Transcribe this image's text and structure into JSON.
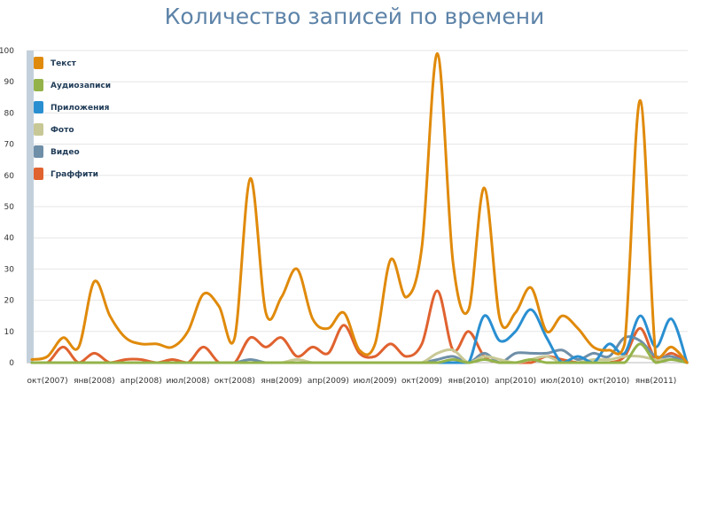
{
  "title": "Количество записей по времени",
  "chart_data": {
    "type": "line",
    "title": "Количество записей по времени",
    "xlabel": "",
    "ylabel": "",
    "ylim": [
      0,
      100
    ],
    "yticks": [
      0,
      10,
      20,
      30,
      40,
      50,
      60,
      70,
      80,
      90,
      100
    ],
    "grid": true,
    "legend_position": "top-left",
    "months": [
      "2007-09",
      "2007-10",
      "2007-11",
      "2007-12",
      "2008-01",
      "2008-02",
      "2008-03",
      "2008-04",
      "2008-05",
      "2008-06",
      "2008-07",
      "2008-08",
      "2008-09",
      "2008-10",
      "2008-11",
      "2008-12",
      "2009-01",
      "2009-02",
      "2009-03",
      "2009-04",
      "2009-05",
      "2009-06",
      "2009-07",
      "2009-08",
      "2009-09",
      "2009-10",
      "2009-11",
      "2009-12",
      "2010-01",
      "2010-02",
      "2010-03",
      "2010-04",
      "2010-05",
      "2010-06",
      "2010-07",
      "2010-08",
      "2010-09",
      "2010-10",
      "2010-11",
      "2010-12",
      "2011-01",
      "2011-02",
      "2011-03"
    ],
    "x_tick_labels": [
      {
        "label": "окт(2007)",
        "month_index": 1
      },
      {
        "label": "янв(2008)",
        "month_index": 4
      },
      {
        "label": "апр(2008)",
        "month_index": 7
      },
      {
        "label": "июл(2008)",
        "month_index": 10
      },
      {
        "label": "окт(2008)",
        "month_index": 13
      },
      {
        "label": "янв(2009)",
        "month_index": 16
      },
      {
        "label": "апр(2009)",
        "month_index": 19
      },
      {
        "label": "июл(2009)",
        "month_index": 22
      },
      {
        "label": "окт(2009)",
        "month_index": 25
      },
      {
        "label": "янв(2010)",
        "month_index": 28
      },
      {
        "label": "апр(2010)",
        "month_index": 31
      },
      {
        "label": "июл(2010)",
        "month_index": 34
      },
      {
        "label": "окт(2010)",
        "month_index": 37
      },
      {
        "label": "янв(2011)",
        "month_index": 40
      }
    ],
    "series": [
      {
        "name": "Текст",
        "color": "#e08a0b",
        "values": [
          1,
          2,
          8,
          5,
          26,
          15,
          8,
          6,
          6,
          5,
          10,
          22,
          18,
          8,
          59,
          16,
          21,
          30,
          14,
          11,
          16,
          4,
          6,
          33,
          21,
          37,
          99,
          32,
          17,
          56,
          14,
          16,
          24,
          10,
          15,
          11,
          5,
          4,
          6,
          84,
          2,
          5,
          0
        ]
      },
      {
        "name": "Аудиозаписи",
        "color": "#93b34a",
        "values": [
          0,
          0,
          0,
          0,
          0,
          0,
          0,
          0,
          0,
          0,
          0,
          0,
          0,
          0,
          0,
          0,
          0,
          0,
          0,
          0,
          0,
          0,
          0,
          0,
          0,
          0,
          0,
          1,
          0,
          1,
          0,
          0,
          1,
          0,
          0,
          0,
          0,
          0,
          0,
          6,
          0,
          1,
          0
        ]
      },
      {
        "name": "Приложения",
        "color": "#2a8fd1",
        "values": [
          0,
          0,
          0,
          0,
          0,
          0,
          0,
          0,
          0,
          0,
          0,
          0,
          0,
          0,
          0,
          0,
          0,
          0,
          0,
          0,
          0,
          0,
          0,
          0,
          0,
          0,
          0,
          0,
          0,
          15,
          7,
          10,
          17,
          8,
          0,
          2,
          0,
          6,
          3,
          15,
          5,
          14,
          0
        ]
      },
      {
        "name": "Фото",
        "color": "#c8c896",
        "values": [
          0,
          0,
          0,
          0,
          0,
          0,
          0,
          0,
          0,
          0,
          0,
          0,
          0,
          0,
          0,
          0,
          0,
          1,
          0,
          0,
          0,
          0,
          0,
          0,
          0,
          0,
          3,
          4,
          0,
          2,
          1,
          0,
          1,
          2,
          0,
          0,
          1,
          1,
          2,
          2,
          1,
          1,
          0
        ]
      },
      {
        "name": "Видео",
        "color": "#6f8fa8",
        "values": [
          0,
          0,
          0,
          0,
          0,
          0,
          0,
          0,
          0,
          0,
          0,
          0,
          0,
          0,
          1,
          0,
          0,
          0,
          0,
          0,
          0,
          0,
          0,
          0,
          0,
          0,
          1,
          2,
          0,
          3,
          0,
          3,
          3,
          3,
          4,
          1,
          3,
          2,
          8,
          7,
          2,
          2,
          0
        ]
      },
      {
        "name": "Граффити",
        "color": "#e0622f",
        "values": [
          0,
          0,
          5,
          0,
          3,
          0,
          1,
          1,
          0,
          1,
          0,
          5,
          0,
          0,
          8,
          5,
          8,
          2,
          5,
          3,
          12,
          3,
          2,
          6,
          2,
          6,
          23,
          4,
          10,
          2,
          0,
          0,
          0,
          2,
          1,
          0,
          0,
          0,
          2,
          11,
          1,
          3,
          0
        ]
      }
    ]
  }
}
